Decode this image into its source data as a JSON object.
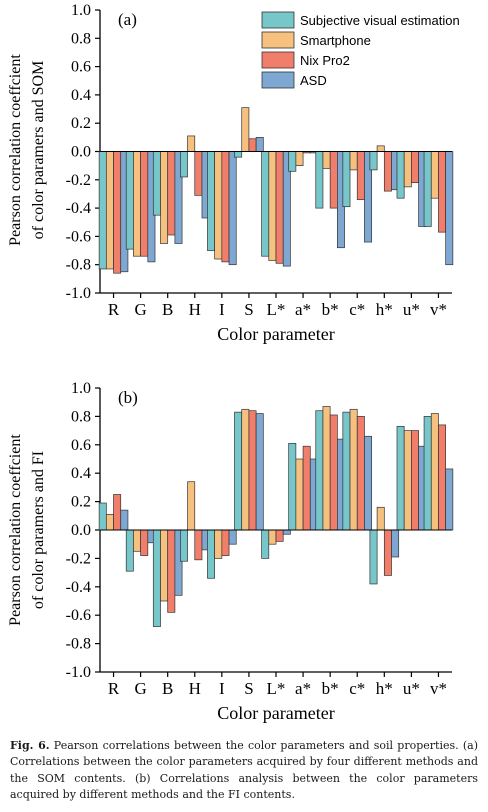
{
  "chart_data": [
    {
      "type": "bar",
      "panel_label": "(a)",
      "ylabel_line1": "Pearson correlation coeffcient",
      "ylabel_line2": "of color paramers and SOM",
      "xlabel": "Color parameter",
      "ylim": [
        -1.0,
        1.0
      ],
      "yticks": [
        "-1.0",
        "-0.8",
        "-0.6",
        "-0.4",
        "-0.2",
        "0.0",
        "0.2",
        "0.4",
        "0.6",
        "0.8",
        "1.0"
      ],
      "categories": [
        "R",
        "G",
        "B",
        "H",
        "I",
        "S",
        "L*",
        "a*",
        "b*",
        "c*",
        "h*",
        "u*",
        "v*"
      ],
      "legend_position": "top-right",
      "series": [
        {
          "name": "Subjective visual estimation",
          "color": "#77c6c9",
          "values": [
            -0.83,
            -0.69,
            -0.45,
            -0.18,
            -0.7,
            -0.04,
            -0.74,
            -0.14,
            -0.4,
            -0.39,
            -0.13,
            -0.33,
            -0.53
          ]
        },
        {
          "name": "Smartphone",
          "color": "#f6c17f",
          "values": [
            -0.83,
            -0.74,
            -0.65,
            0.11,
            -0.76,
            0.31,
            -0.77,
            -0.1,
            -0.12,
            -0.13,
            0.04,
            -0.25,
            -0.33
          ]
        },
        {
          "name": "Nix Pro2",
          "color": "#f07e6b",
          "values": [
            -0.86,
            -0.74,
            -0.59,
            -0.31,
            -0.78,
            0.09,
            -0.79,
            -0.01,
            -0.4,
            -0.34,
            -0.28,
            -0.22,
            -0.57
          ]
        },
        {
          "name": "ASD",
          "color": "#7ea8d2",
          "values": [
            -0.85,
            -0.78,
            -0.65,
            -0.47,
            -0.8,
            0.1,
            -0.81,
            -0.01,
            -0.68,
            -0.64,
            -0.27,
            -0.53,
            -0.8
          ]
        }
      ]
    },
    {
      "type": "bar",
      "panel_label": "(b)",
      "ylabel_line1": "Pearson correlation coeffcient",
      "ylabel_line2": "of color paramers and FI",
      "xlabel": "Color parameter",
      "ylim": [
        -1.0,
        1.0
      ],
      "yticks": [
        "-1.0",
        "-0.8",
        "-0.6",
        "-0.4",
        "-0.2",
        "0.0",
        "0.2",
        "0.4",
        "0.6",
        "0.8",
        "1.0"
      ],
      "categories": [
        "R",
        "G",
        "B",
        "H",
        "I",
        "S",
        "L*",
        "a*",
        "b*",
        "c*",
        "h*",
        "u*",
        "v*"
      ],
      "series": [
        {
          "name": "Subjective visual estimation",
          "color": "#77c6c9",
          "values": [
            0.19,
            -0.29,
            -0.68,
            -0.22,
            -0.34,
            0.83,
            -0.2,
            0.61,
            0.84,
            0.83,
            -0.38,
            0.73,
            0.8
          ]
        },
        {
          "name": "Smartphone",
          "color": "#f6c17f",
          "values": [
            0.11,
            -0.15,
            -0.5,
            0.34,
            -0.2,
            0.85,
            -0.1,
            0.5,
            0.87,
            0.85,
            0.16,
            0.7,
            0.82
          ]
        },
        {
          "name": "Nix Pro2",
          "color": "#f07e6b",
          "values": [
            0.25,
            -0.18,
            -0.58,
            -0.21,
            -0.18,
            0.84,
            -0.08,
            0.59,
            0.81,
            0.8,
            -0.32,
            0.7,
            0.74
          ]
        },
        {
          "name": "ASD",
          "color": "#7ea8d2",
          "values": [
            0.14,
            -0.09,
            -0.46,
            -0.14,
            -0.1,
            0.82,
            -0.03,
            0.5,
            0.64,
            0.66,
            -0.19,
            0.59,
            0.43
          ]
        }
      ]
    }
  ],
  "caption": {
    "label": "Fig. 6.",
    "text": "Pearson correlations between the color parameters and soil properties. (a) Correlations between the color parameters acquired by four different methods and the SOM contents. (b) Correlations analysis between the color parameters acquired by different methods and the FI contents."
  }
}
